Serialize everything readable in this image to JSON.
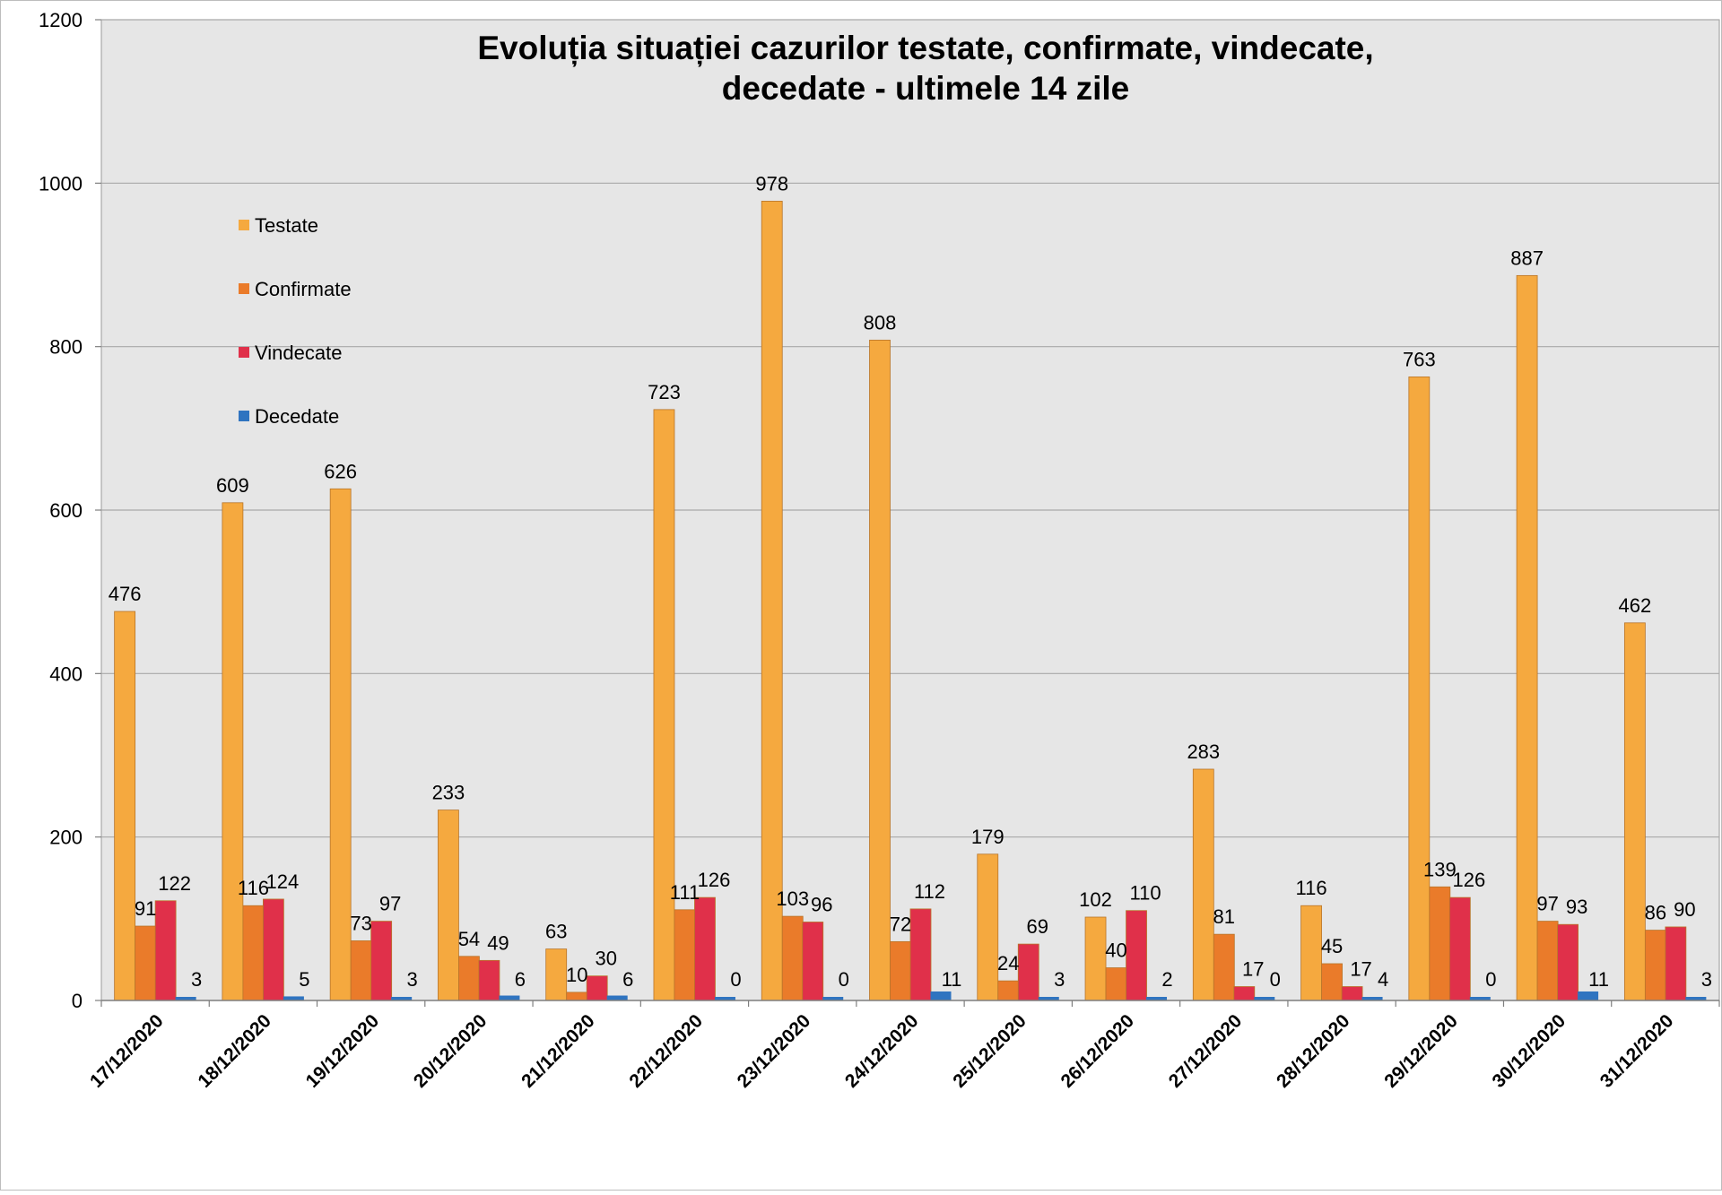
{
  "chart_data": {
    "type": "bar",
    "title_lines": [
      "Evoluția situației cazurilor testate, confirmate, vindecate,",
      "decedate -  ultimele 14 zile"
    ],
    "xlabel": "",
    "ylabel": "",
    "ylim": [
      0,
      1200
    ],
    "yticks": [
      0,
      200,
      400,
      600,
      800,
      1000,
      1200
    ],
    "grid": true,
    "legend_position": "top-left",
    "categories": [
      "17/12/2020",
      "18/12/2020",
      "19/12/2020",
      "20/12/2020",
      "21/12/2020",
      "22/12/2020",
      "23/12/2020",
      "24/12/2020",
      "25/12/2020",
      "26/12/2020",
      "27/12/2020",
      "28/12/2020",
      "29/12/2020",
      "30/12/2020",
      "31/12/2020"
    ],
    "series": [
      {
        "name": "Testate",
        "color": "#f5a93f",
        "values": [
          476,
          609,
          626,
          233,
          63,
          723,
          978,
          808,
          179,
          102,
          283,
          116,
          763,
          887,
          462
        ]
      },
      {
        "name": "Confirmate",
        "color": "#ea7b2a",
        "values": [
          91,
          116,
          73,
          54,
          10,
          111,
          103,
          72,
          24,
          40,
          81,
          45,
          139,
          97,
          86
        ]
      },
      {
        "name": "Vindecate",
        "color": "#e0304a",
        "values": [
          122,
          124,
          97,
          49,
          30,
          126,
          96,
          112,
          69,
          110,
          17,
          17,
          126,
          93,
          90
        ]
      },
      {
        "name": "Decedate",
        "color": "#2f74c0",
        "values": [
          3,
          5,
          3,
          6,
          6,
          0,
          0,
          11,
          3,
          2,
          0,
          4,
          0,
          11,
          3
        ]
      }
    ]
  }
}
